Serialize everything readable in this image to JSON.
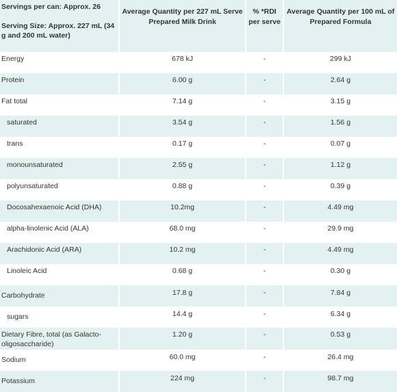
{
  "header": {
    "servings": "Servings per can: Approx. 26",
    "serving_size": "Serving Size: Approx. 227 mL (34 g and 200 mL water)",
    "col2": "Average Quantity per 227 mL Serve Prepared Milk Drink",
    "col3": "% *RDI per serve",
    "col4": "Average Quantity per 100 mL of Prepared Formula"
  },
  "rows": [
    {
      "name": "Energy",
      "per_serve": "678 kJ",
      "rdi": "-",
      "per_100": "299 kJ"
    },
    {
      "name": "Protein",
      "per_serve": "6.00 g",
      "rdi": "-",
      "per_100": "2.64 g"
    },
    {
      "name": "Fat total",
      "per_serve": "7.14 g",
      "rdi": "-",
      "per_100": "3.15 g"
    },
    {
      "name": "saturated",
      "per_serve": "3.54 g",
      "rdi": "-",
      "per_100": "1.56 g"
    },
    {
      "name": "trans",
      "per_serve": "0.17 g",
      "rdi": "-",
      "per_100": "0.07 g"
    },
    {
      "name": "monounsaturated",
      "per_serve": "2.55 g",
      "rdi": "-",
      "per_100": "1.12 g"
    },
    {
      "name": "polyunsaturated",
      "per_serve": "0.88 g",
      "rdi": "-",
      "per_100": "0.39 g"
    },
    {
      "name": "Docosahexaenoic Acid (DHA)",
      "per_serve": "10.2mg",
      "rdi": "-",
      "per_100": "4.49 mg"
    },
    {
      "name": "alpha-linolenic Acid (ALA)",
      "per_serve": "68.0 mg",
      "rdi": "-",
      "per_100": "29.9 mg"
    },
    {
      "name": "Arachidonic Acid (ARA)",
      "per_serve": "10.2 mg",
      "rdi": "-",
      "per_100": "4.49 mg"
    },
    {
      "name": "Linoleic Acid",
      "per_serve": "0.68 g",
      "rdi": "-",
      "per_100": "0.30 g"
    },
    {
      "name": "Carbohydrate",
      "per_serve": "17.8 g",
      "rdi": "-",
      "per_100": "7.84 g"
    },
    {
      "name": "sugars",
      "per_serve": "14.4 g",
      "rdi": "-",
      "per_100": "6.34 g"
    },
    {
      "name": "Dietary Fibre, total (as Galacto-oligosaccharide)",
      "per_serve": "1.20 g",
      "rdi": "-",
      "per_100": "0.53 g"
    },
    {
      "name": "Sodium",
      "per_serve": "60.0 mg",
      "rdi": "-",
      "per_100": "26.4 mg"
    },
    {
      "name": "Potassium",
      "per_serve": "224 mg",
      "rdi": "-",
      "per_100": "98.7 mg"
    }
  ]
}
